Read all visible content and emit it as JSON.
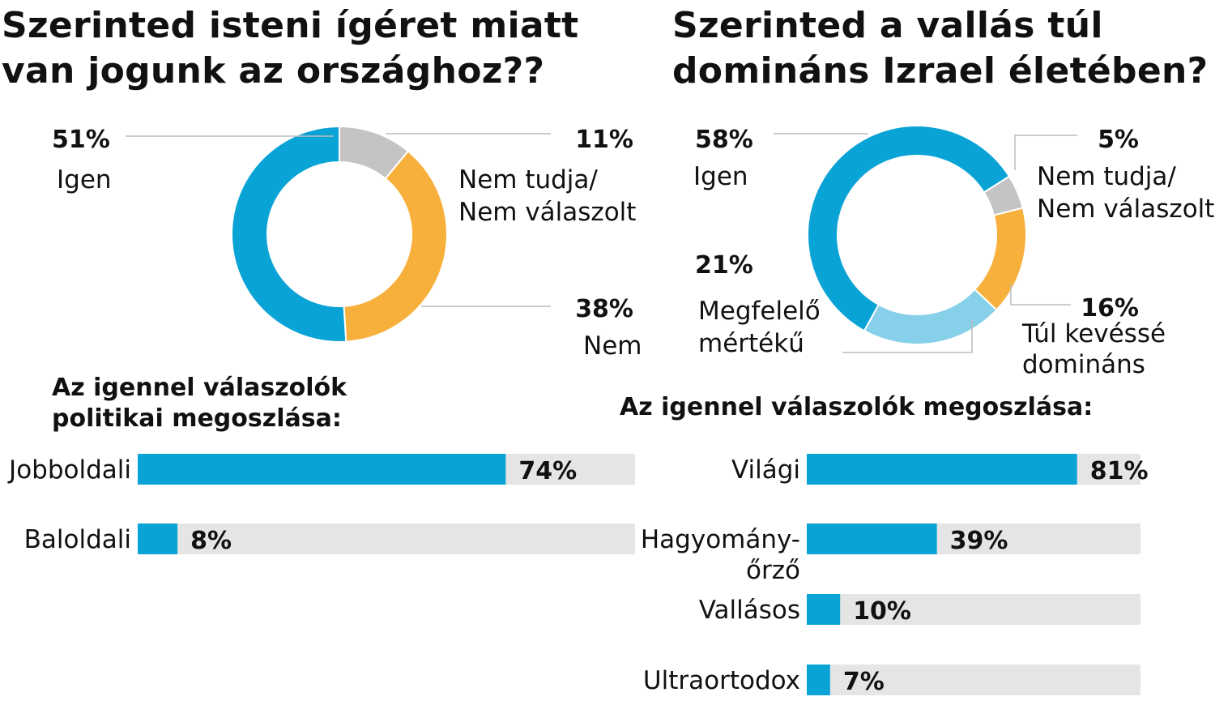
{
  "titles": {
    "left": "Szerinted isteni ígéret miatt van jogunk az országhoz??",
    "right": "Szerinted a vallás túl domináns Izrael életében?",
    "left_bar_subtitle": "Az igennel válaszolók politikai megoszlása:",
    "right_bar_subtitle": "Az igennel válaszolók megoszlása:"
  },
  "colors": {
    "blue": "#0aa3d6",
    "light_blue": "#87d0ea",
    "orange": "#f7b03c",
    "gray": "#c4c4c4",
    "track": "#e5e5e5",
    "leader": "#bbbbbb"
  },
  "chart_data": [
    {
      "type": "pie",
      "variant": "donut",
      "title": "Szerinted isteni ígéret miatt van jogunk az országhoz??",
      "slices": [
        {
          "label": "Igen",
          "value": 51,
          "value_label": "51%",
          "color": "#0aa3d6"
        },
        {
          "label": "Nem",
          "value": 38,
          "value_label": "38%",
          "color": "#f7b03c"
        },
        {
          "label": "Nem tudja/\nNem válaszolt",
          "value": 11,
          "value_label": "11%",
          "color": "#c4c4c4"
        }
      ]
    },
    {
      "type": "bar",
      "orientation": "horizontal",
      "title": "Az igennel válaszolók politikai megoszlása:",
      "xlim": [
        0,
        100
      ],
      "categories": [
        "Jobboldali",
        "Baloldali"
      ],
      "values": [
        74,
        8
      ],
      "value_labels": [
        "74%",
        "8%"
      ]
    },
    {
      "type": "pie",
      "variant": "donut",
      "title": "Szerinted a vallás túl domináns Izrael életében?",
      "slices": [
        {
          "label": "Igen",
          "value": 58,
          "value_label": "58%",
          "color": "#0aa3d6"
        },
        {
          "label": "Megfelelő\nmértékű",
          "value": 21,
          "value_label": "21%",
          "color": "#87d0ea"
        },
        {
          "label": "Túl kevéssé\ndomináns",
          "value": 16,
          "value_label": "16%",
          "color": "#f7b03c"
        },
        {
          "label": "Nem tudja/\nNem válaszolt",
          "value": 5,
          "value_label": "5%",
          "color": "#c4c4c4"
        }
      ]
    },
    {
      "type": "bar",
      "orientation": "horizontal",
      "title": "Az igennel válaszolók megoszlása:",
      "xlim": [
        0,
        100
      ],
      "categories": [
        "Világi",
        "Hagyomány-\nőrző",
        "Vallásos",
        "Ultraortodox"
      ],
      "values": [
        81,
        39,
        10,
        7
      ],
      "value_labels": [
        "81%",
        "39%",
        "10%",
        "7%"
      ]
    }
  ]
}
